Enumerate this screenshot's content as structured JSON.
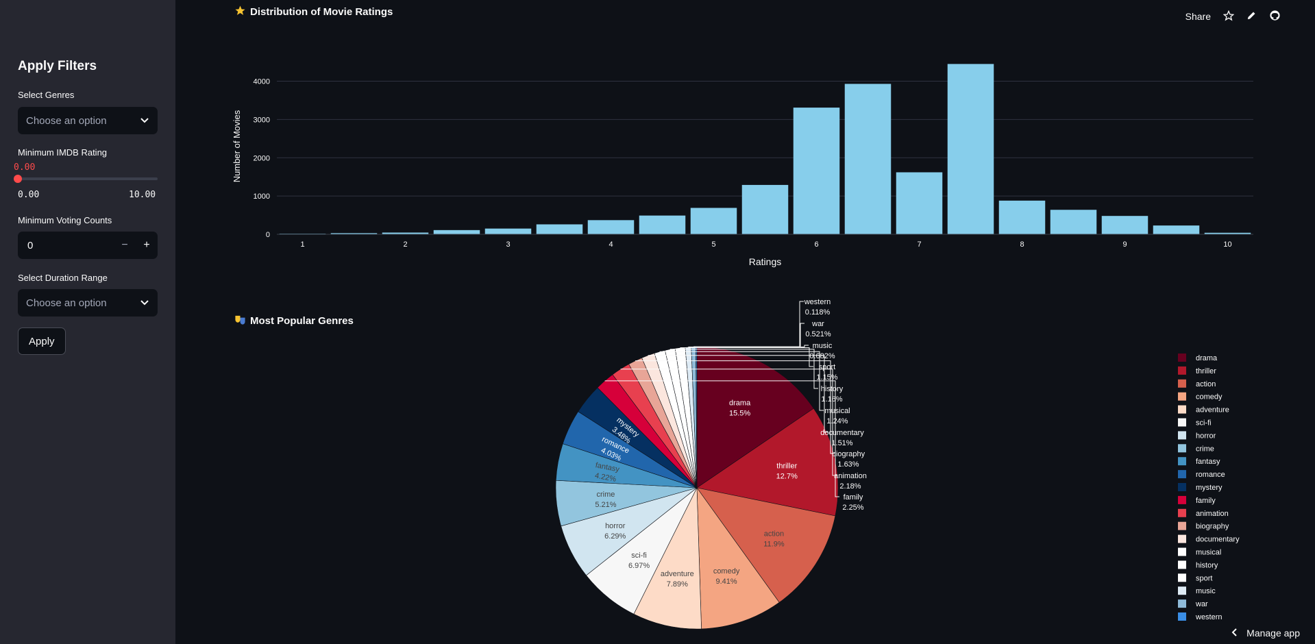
{
  "toolbar": {
    "share_label": "Share",
    "icons": [
      "star-icon",
      "pencil-icon",
      "github-icon"
    ]
  },
  "sidebar": {
    "title": "Apply Filters",
    "genres": {
      "label": "Select Genres",
      "placeholder": "Choose an option"
    },
    "rating": {
      "label": "Minimum IMDB Rating",
      "value": "0.00",
      "min": "0.00",
      "max": "10.00"
    },
    "votes": {
      "label": "Minimum Voting Counts",
      "value": "0",
      "minus": "−",
      "plus": "+"
    },
    "duration": {
      "label": "Select Duration Range",
      "placeholder": "Choose an option"
    },
    "apply_label": "Apply"
  },
  "bar_section": {
    "title": "Distribution of Movie Ratings",
    "icon": "star-icon"
  },
  "pie_section": {
    "title": "Most Popular Genres",
    "icon": "theater-masks-icon"
  },
  "manage_label": "Manage app",
  "chart_data": [
    {
      "type": "bar",
      "title": "Distribution of Movie Ratings",
      "xlabel": "Ratings",
      "ylabel": "Number of Movies",
      "xlim": [
        0.75,
        10.25
      ],
      "ylim": [
        0,
        4600
      ],
      "xticks": [
        1,
        2,
        3,
        4,
        5,
        6,
        7,
        8,
        9,
        10
      ],
      "yticks": [
        0,
        1000,
        2000,
        3000,
        4000
      ],
      "color": "#87ceeb",
      "x": [
        1,
        1.5,
        2,
        2.5,
        3,
        3.5,
        4,
        4.5,
        5,
        5.5,
        6,
        6.5,
        7,
        7.5,
        8,
        8.5,
        9,
        9.5,
        10
      ],
      "values": [
        15,
        30,
        45,
        110,
        150,
        260,
        370,
        490,
        690,
        1290,
        3310,
        3930,
        1620,
        4450,
        880,
        640,
        480,
        230,
        40
      ],
      "grid": true
    },
    {
      "type": "pie",
      "title": "Most Popular Genres",
      "legend_position": "right",
      "slices": [
        {
          "label": "drama",
          "pct": "15.5%",
          "value": 15.5,
          "color": "#67001f"
        },
        {
          "label": "thriller",
          "pct": "12.7%",
          "value": 12.7,
          "color": "#b2182b"
        },
        {
          "label": "action",
          "pct": "11.9%",
          "value": 11.9,
          "color": "#d6604d"
        },
        {
          "label": "comedy",
          "pct": "9.41%",
          "value": 9.41,
          "color": "#f4a582"
        },
        {
          "label": "adventure",
          "pct": "7.89%",
          "value": 7.89,
          "color": "#fddbc7"
        },
        {
          "label": "sci-fi",
          "pct": "6.97%",
          "value": 6.97,
          "color": "#f7f7f7"
        },
        {
          "label": "horror",
          "pct": "6.29%",
          "value": 6.29,
          "color": "#d1e5f0"
        },
        {
          "label": "crime",
          "pct": "5.21%",
          "value": 5.21,
          "color": "#92c5de"
        },
        {
          "label": "fantasy",
          "pct": "4.22%",
          "value": 4.22,
          "color": "#4393c3"
        },
        {
          "label": "romance",
          "pct": "4.03%",
          "value": 4.03,
          "color": "#2166ac"
        },
        {
          "label": "mystery",
          "pct": "3.48%",
          "value": 3.48,
          "color": "#053061"
        },
        {
          "label": "family",
          "pct": "2.25%",
          "value": 2.25,
          "color": "#d6003a"
        },
        {
          "label": "animation",
          "pct": "2.18%",
          "value": 2.18,
          "color": "#e8404f"
        },
        {
          "label": "biography",
          "pct": "1.63%",
          "value": 1.63,
          "color": "#e8a597"
        },
        {
          "label": "documentary",
          "pct": "1.51%",
          "value": 1.51,
          "color": "#fbe6de"
        },
        {
          "label": "musical",
          "pct": "1.24%",
          "value": 1.24,
          "color": "#ffffff"
        },
        {
          "label": "history",
          "pct": "1.16%",
          "value": 1.16,
          "color": "#ffffff"
        },
        {
          "label": "sport",
          "pct": "1.15%",
          "value": 1.15,
          "color": "#ffffff"
        },
        {
          "label": "music",
          "pct": "0.682%",
          "value": 0.682,
          "color": "#deebf5"
        },
        {
          "label": "war",
          "pct": "0.521%",
          "value": 0.521,
          "color": "#8fbbd9"
        },
        {
          "label": "western",
          "pct": "0.118%",
          "value": 0.118,
          "color": "#3a8ee6"
        }
      ],
      "legend": [
        "drama",
        "thriller",
        "action",
        "comedy",
        "adventure",
        "sci-fi",
        "horror",
        "crime",
        "fantasy",
        "romance",
        "mystery",
        "family",
        "animation",
        "biography",
        "documentary",
        "musical",
        "history",
        "sport",
        "music",
        "war",
        "western"
      ]
    }
  ]
}
